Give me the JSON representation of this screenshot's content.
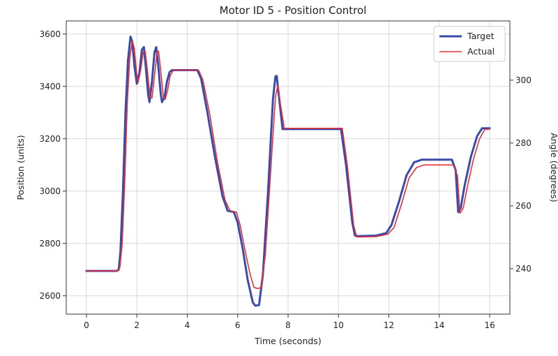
{
  "chart_data": {
    "type": "line",
    "title": "Motor  ID  5 - Position  Control",
    "xlabel": "Time (seconds)",
    "ylabel": "Position (units)",
    "y2label": "Angle (degrees)",
    "xlim": [
      -0.8,
      16.8
    ],
    "ylim": [
      2530,
      3650
    ],
    "y2lim": [
      225.56,
      318.84
    ],
    "xticks": [
      "0",
      "2",
      "4",
      "6",
      "8",
      "10",
      "12",
      "14",
      "16"
    ],
    "yticks": [
      "2600",
      "2800",
      "3000",
      "3200",
      "3400",
      "3600"
    ],
    "y2ticks": [
      "240",
      "260",
      "280",
      "300"
    ],
    "grid": true,
    "legend_position": "top-right",
    "series": [
      {
        "name": "Target",
        "color": "#3a4aa8",
        "points": [
          [
            0,
            2695
          ],
          [
            1.2,
            2695
          ],
          [
            1.28,
            2700
          ],
          [
            1.35,
            2770
          ],
          [
            1.45,
            3000
          ],
          [
            1.55,
            3300
          ],
          [
            1.65,
            3500
          ],
          [
            1.75,
            3590
          ],
          [
            1.82,
            3570
          ],
          [
            1.9,
            3480
          ],
          [
            2.0,
            3410
          ],
          [
            2.1,
            3450
          ],
          [
            2.2,
            3540
          ],
          [
            2.28,
            3550
          ],
          [
            2.35,
            3480
          ],
          [
            2.45,
            3370
          ],
          [
            2.5,
            3340
          ],
          [
            2.6,
            3420
          ],
          [
            2.7,
            3530
          ],
          [
            2.77,
            3550
          ],
          [
            2.85,
            3480
          ],
          [
            2.95,
            3370
          ],
          [
            3.0,
            3340
          ],
          [
            3.1,
            3360
          ],
          [
            3.2,
            3420
          ],
          [
            3.3,
            3455
          ],
          [
            3.4,
            3462
          ],
          [
            4.4,
            3462
          ],
          [
            4.55,
            3430
          ],
          [
            4.8,
            3300
          ],
          [
            5.1,
            3130
          ],
          [
            5.4,
            2980
          ],
          [
            5.6,
            2925
          ],
          [
            5.85,
            2920
          ],
          [
            6.0,
            2880
          ],
          [
            6.2,
            2780
          ],
          [
            6.4,
            2660
          ],
          [
            6.6,
            2575
          ],
          [
            6.7,
            2562
          ],
          [
            6.85,
            2565
          ],
          [
            7.0,
            2680
          ],
          [
            7.2,
            2990
          ],
          [
            7.4,
            3350
          ],
          [
            7.5,
            3438
          ],
          [
            7.55,
            3440
          ],
          [
            7.65,
            3350
          ],
          [
            7.78,
            3237
          ],
          [
            8.0,
            3237
          ],
          [
            10.1,
            3237
          ],
          [
            10.3,
            3100
          ],
          [
            10.55,
            2880
          ],
          [
            10.65,
            2830
          ],
          [
            10.8,
            2828
          ],
          [
            11.5,
            2830
          ],
          [
            11.9,
            2840
          ],
          [
            12.1,
            2870
          ],
          [
            12.4,
            2960
          ],
          [
            12.7,
            3060
          ],
          [
            13.0,
            3110
          ],
          [
            13.3,
            3120
          ],
          [
            14.5,
            3120
          ],
          [
            14.65,
            3080
          ],
          [
            14.75,
            2920
          ],
          [
            14.85,
            2935
          ],
          [
            15.0,
            3020
          ],
          [
            15.25,
            3130
          ],
          [
            15.5,
            3210
          ],
          [
            15.7,
            3240
          ],
          [
            16.0,
            3240
          ]
        ]
      },
      {
        "name": "Actual",
        "color": "#e0303a",
        "points": [
          [
            0,
            2695
          ],
          [
            1.25,
            2695
          ],
          [
            1.33,
            2710
          ],
          [
            1.42,
            2800
          ],
          [
            1.52,
            3030
          ],
          [
            1.62,
            3330
          ],
          [
            1.72,
            3510
          ],
          [
            1.82,
            3575
          ],
          [
            1.9,
            3545
          ],
          [
            1.98,
            3460
          ],
          [
            2.05,
            3415
          ],
          [
            2.15,
            3460
          ],
          [
            2.25,
            3530
          ],
          [
            2.33,
            3535
          ],
          [
            2.42,
            3460
          ],
          [
            2.52,
            3360
          ],
          [
            2.6,
            3355
          ],
          [
            2.7,
            3440
          ],
          [
            2.8,
            3530
          ],
          [
            2.86,
            3535
          ],
          [
            2.95,
            3460
          ],
          [
            3.05,
            3360
          ],
          [
            3.12,
            3350
          ],
          [
            3.22,
            3385
          ],
          [
            3.32,
            3440
          ],
          [
            3.45,
            3462
          ],
          [
            4.45,
            3462
          ],
          [
            4.62,
            3425
          ],
          [
            4.9,
            3290
          ],
          [
            5.2,
            3110
          ],
          [
            5.5,
            2965
          ],
          [
            5.7,
            2925
          ],
          [
            5.95,
            2920
          ],
          [
            6.1,
            2870
          ],
          [
            6.3,
            2770
          ],
          [
            6.5,
            2680
          ],
          [
            6.65,
            2632
          ],
          [
            6.8,
            2628
          ],
          [
            6.95,
            2632
          ],
          [
            7.1,
            2760
          ],
          [
            7.3,
            3060
          ],
          [
            7.5,
            3360
          ],
          [
            7.6,
            3405
          ],
          [
            7.7,
            3330
          ],
          [
            7.85,
            3240
          ],
          [
            10.15,
            3240
          ],
          [
            10.35,
            3100
          ],
          [
            10.6,
            2870
          ],
          [
            10.72,
            2825
          ],
          [
            10.9,
            2825
          ],
          [
            11.5,
            2826
          ],
          [
            11.95,
            2835
          ],
          [
            12.2,
            2860
          ],
          [
            12.5,
            2950
          ],
          [
            12.8,
            3050
          ],
          [
            13.1,
            3090
          ],
          [
            13.4,
            3100
          ],
          [
            14.55,
            3100
          ],
          [
            14.72,
            3060
          ],
          [
            14.82,
            2915
          ],
          [
            14.95,
            2935
          ],
          [
            15.1,
            3010
          ],
          [
            15.35,
            3120
          ],
          [
            15.6,
            3200
          ],
          [
            15.8,
            3235
          ],
          [
            16.0,
            3237
          ]
        ]
      }
    ]
  }
}
